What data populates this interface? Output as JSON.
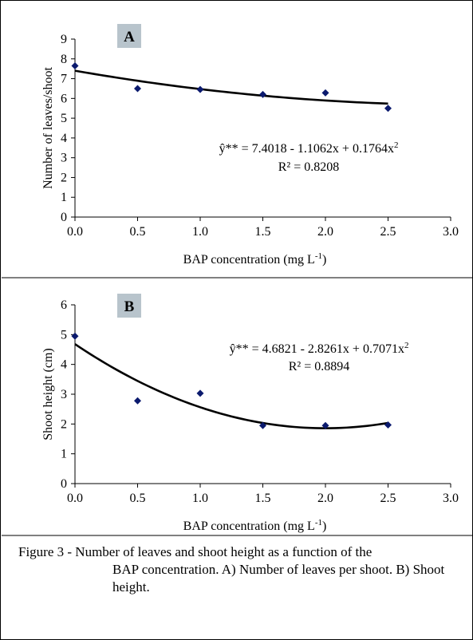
{
  "chart_data": [
    {
      "type": "scatter",
      "panel_label": "A",
      "xlabel": "BAP concentration (mg L",
      "xlabel_sup": "-1",
      "xlabel_close": ")",
      "ylabel": "Number of leaves/shoot",
      "xlim": [
        0,
        3
      ],
      "ylim": [
        0,
        9
      ],
      "x_ticks": [
        "0.0",
        "0.5",
        "1.0",
        "1.5",
        "2.0",
        "2.5",
        "3.0"
      ],
      "y_ticks": [
        "0",
        "1",
        "2",
        "3",
        "4",
        "5",
        "6",
        "7",
        "8",
        "9"
      ],
      "points": {
        "x": [
          0,
          0.5,
          1.0,
          1.5,
          2.0,
          2.5
        ],
        "y": [
          7.65,
          6.5,
          6.45,
          6.2,
          6.28,
          5.5
        ]
      },
      "fit": {
        "kind": "quadratic",
        "coefficients": [
          7.4018,
          -1.1062,
          0.1764
        ],
        "x_range": [
          0,
          2.5
        ]
      },
      "equation": "ŷ** = 7.4018 - 1.1062x + 0.1764x",
      "equation_sup": "2",
      "r2": "R² = 0.8208",
      "marker_color": "#0b1a6e",
      "grid": false,
      "legend": "none"
    },
    {
      "type": "scatter",
      "panel_label": "B",
      "xlabel": "BAP concentration (mg L",
      "xlabel_sup": "-1",
      "xlabel_close": ")",
      "ylabel": "Shoot height (cm)",
      "xlim": [
        0,
        3
      ],
      "ylim": [
        0,
        6
      ],
      "x_ticks": [
        "0.0",
        "0.5",
        "1.0",
        "1.5",
        "2.0",
        "2.5",
        "3.0"
      ],
      "y_ticks": [
        "0",
        "1",
        "2",
        "3",
        "4",
        "5",
        "6"
      ],
      "points": {
        "x": [
          0,
          0.5,
          1.0,
          1.5,
          2.0,
          2.5
        ],
        "y": [
          4.95,
          2.78,
          3.03,
          1.95,
          1.95,
          1.97
        ]
      },
      "fit": {
        "kind": "quadratic",
        "coefficients": [
          4.6821,
          -2.8261,
          0.7071
        ],
        "x_range": [
          0,
          2.5
        ]
      },
      "equation": "ŷ** = 4.6821 - 2.8261x + 0.7071x",
      "equation_sup": "2",
      "r2": "R² = 0.8894",
      "marker_color": "#0b1a6e",
      "grid": false,
      "legend": "none"
    }
  ],
  "caption": {
    "lead": "Figure 3 - Number of leaves and shoot height as a function of the",
    "cont": "BAP concentration. A) Number of leaves per shoot. B) Shoot height."
  },
  "panel_label_bg": "#b8c4cc"
}
